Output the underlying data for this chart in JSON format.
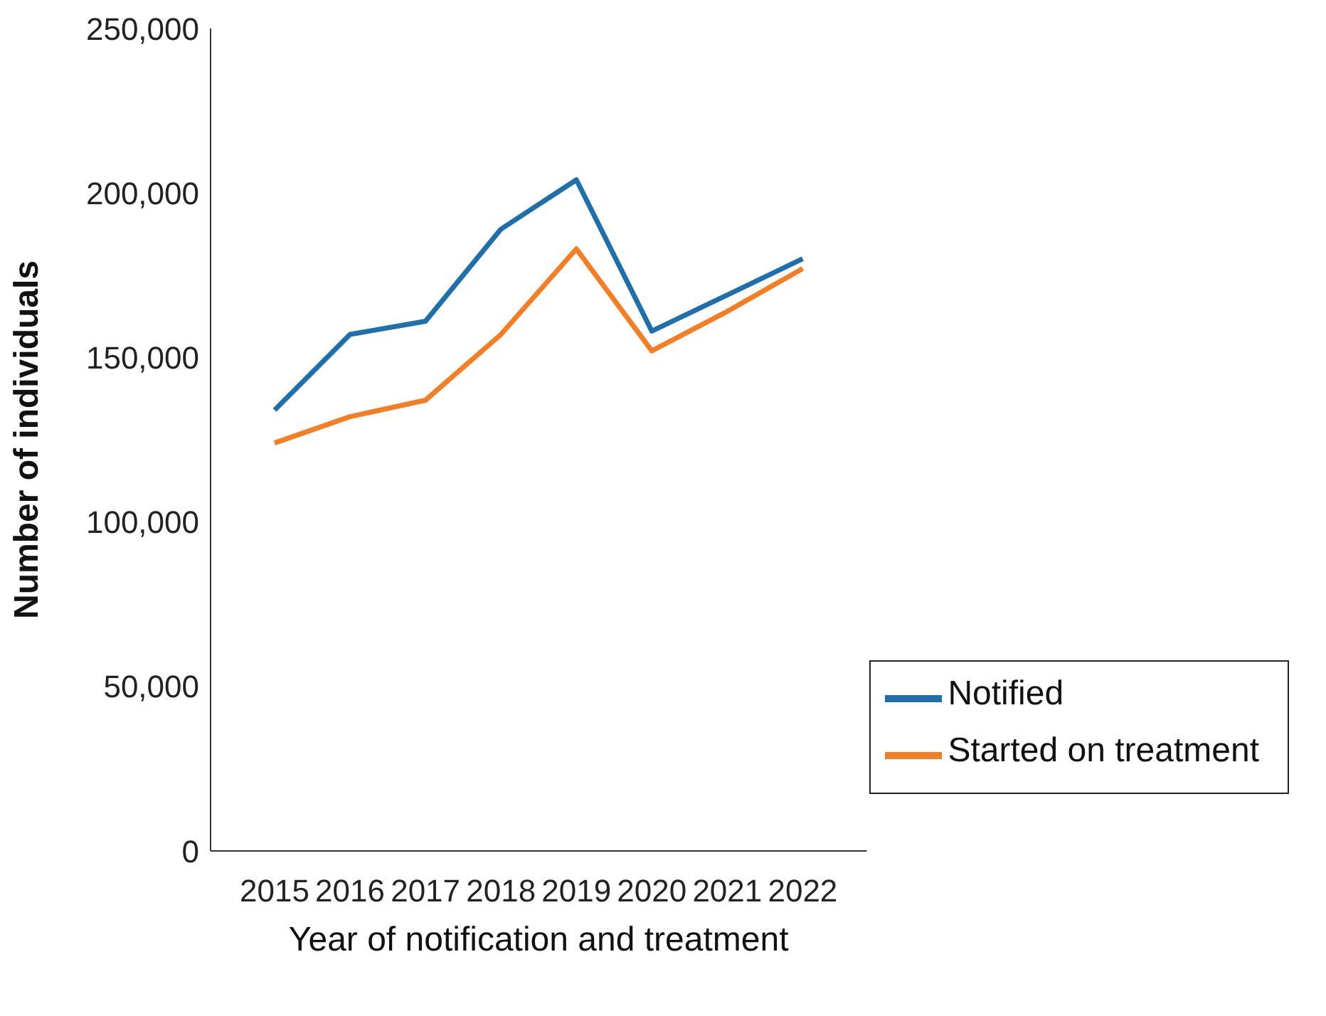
{
  "chart_data": {
    "type": "line",
    "xlabel": "Year of notification and treatment",
    "ylabel": "Number of individuals",
    "categories": [
      "2015",
      "2016",
      "2017",
      "2018",
      "2019",
      "2020",
      "2021",
      "2022"
    ],
    "series": [
      {
        "name": "Notified",
        "color": "#1f6fad",
        "values": [
          134000,
          157000,
          161000,
          189000,
          204000,
          158000,
          169000,
          180000
        ]
      },
      {
        "name": "Started on treatment",
        "color": "#f57e25",
        "values": [
          124000,
          132000,
          137000,
          157000,
          183000,
          152000,
          164000,
          177000
        ]
      }
    ],
    "ylim": [
      0,
      250000
    ],
    "yticks": [
      {
        "value": 0,
        "label": "0"
      },
      {
        "value": 50000,
        "label": "50,000"
      },
      {
        "value": 100000,
        "label": "100,000"
      },
      {
        "value": 150000,
        "label": "150,000"
      },
      {
        "value": 200000,
        "label": "200,000"
      },
      {
        "value": 250000,
        "label": "250,000"
      }
    ],
    "grid": false,
    "legend": "bottom right",
    "marker": "none",
    "line_style": "solid"
  }
}
